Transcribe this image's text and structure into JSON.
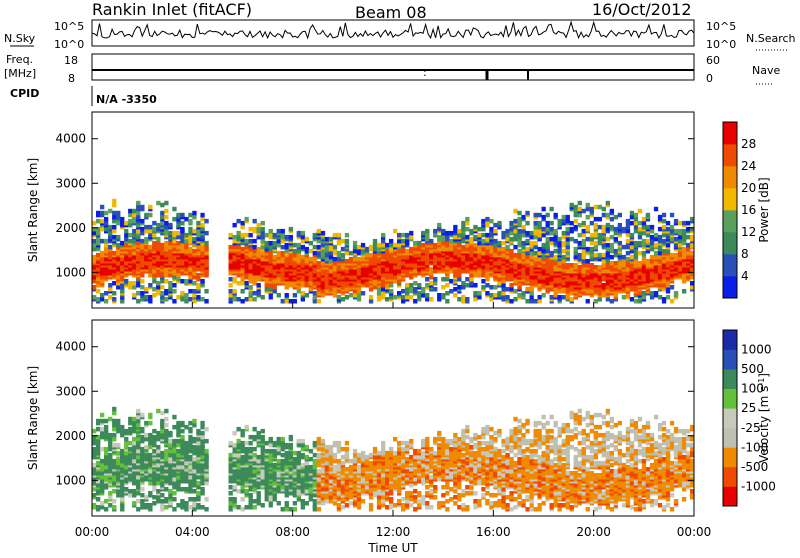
{
  "header": {
    "station": "Rankin Inlet (fitACF)",
    "beam": "Beam 08",
    "date": "16/Oct/2012"
  },
  "top_panels": {
    "nsky_label": "N.Sky",
    "nsearch_label": "N.Search",
    "noise_tick_high": "10^5",
    "noise_tick_low": "10^0",
    "freq_label_line1": "Freq.",
    "freq_label_line2": "[MHz]",
    "freq_tick_high": "18",
    "freq_tick_low": "8",
    "nave_label": "Nave",
    "nave_tick_high": "60",
    "nave_tick_low": "0",
    "cpid_label": "CPID",
    "cpid_value": "N/A -3350"
  },
  "colors": {
    "power_scale": [
      "#0a1ee6",
      "#2a4fb8",
      "#3b8a5a",
      "#5aa05a",
      "#f2b800",
      "#f08a00",
      "#ee4a00",
      "#e80000"
    ],
    "velocity_scale": [
      "#e80000",
      "#ee4a00",
      "#f08a00",
      "#c0c0b0",
      "#c8c8bc",
      "#62c03a",
      "#3c8a5a",
      "#2a4fb8",
      "#1a2aa8"
    ]
  },
  "chart_data": [
    {
      "type": "heatmap",
      "name": "power",
      "ylabel": "Slant Range [km]",
      "yticks": [
        "1000",
        "2000",
        "3000",
        "4000"
      ],
      "ylim": [
        200,
        4600
      ],
      "xlim": [
        0,
        24
      ],
      "colorbar_label": "Power [dB]",
      "colorbar_ticks": [
        "4",
        "8",
        "12",
        "16",
        "20",
        "24",
        "28"
      ],
      "colorbar_range": [
        0,
        32
      ]
    },
    {
      "type": "heatmap",
      "name": "velocity",
      "ylabel": "Slant Range [km]",
      "yticks": [
        "1000",
        "2000",
        "3000",
        "4000"
      ],
      "ylim": [
        200,
        4600
      ],
      "xlim": [
        0,
        24
      ],
      "xticks": [
        "00:00",
        "04:00",
        "08:00",
        "12:00",
        "16:00",
        "20:00",
        "00:00"
      ],
      "xlabel": "Time UT",
      "colorbar_label": "Velocity [m s",
      "colorbar_label_exp": "-1",
      "colorbar_label_end": "]",
      "colorbar_ticks": [
        "1000",
        "500",
        "100",
        "25",
        "-25",
        "-100",
        "-500",
        "-1000"
      ]
    }
  ]
}
